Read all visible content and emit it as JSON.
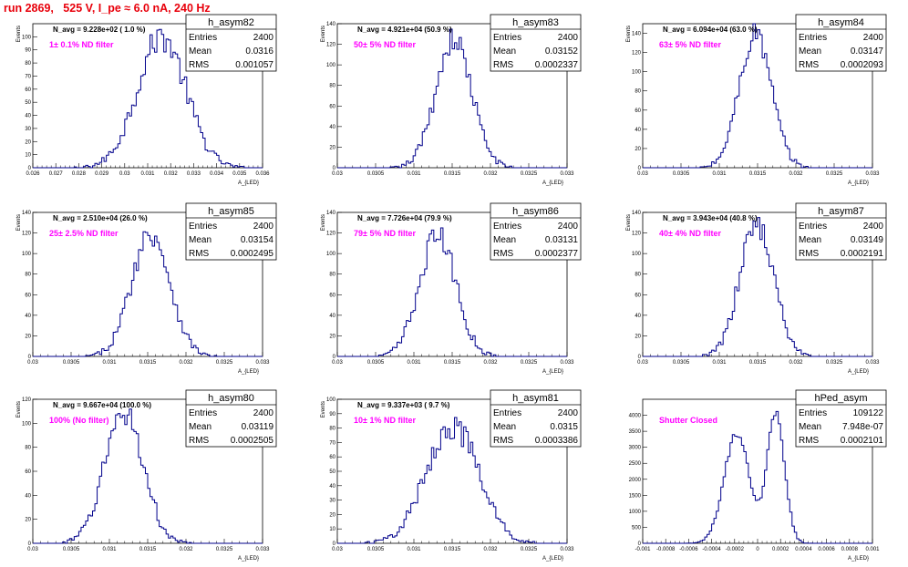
{
  "title": "run 2869,   525 V, I_pe ≈ 6.0 nA, 240 Hz",
  "colors": {
    "title": "#e8000b",
    "hist_line": "#00008b",
    "filter_label": "#ff00ff",
    "axes": "#000000"
  },
  "chart_data": [
    {
      "type": "histogram",
      "hist_name": "h_asym82",
      "navg": "N_avg = 9.228e+02 ( 1.0 %)",
      "filter": "1± 0.1% ND filter",
      "stats": {
        "entries": "2400",
        "mean": "0.0316",
        "rms": "0.001057"
      },
      "xlabel": "A_{LED}",
      "ylabel": "Events",
      "xlim": [
        0.026,
        0.036
      ],
      "ylim": [
        0,
        110
      ],
      "xticks": [
        0.026,
        0.027,
        0.028,
        0.029,
        0.03,
        0.031,
        0.032,
        0.033,
        0.034,
        0.035,
        0.036
      ],
      "xtick_labels": [
        "0.026",
        "0.027",
        "0.028",
        "0.029",
        "0.03",
        "0.031",
        "0.032",
        "0.033",
        "0.034",
        "0.035",
        "0.036"
      ],
      "yticks": [
        0,
        10,
        20,
        30,
        40,
        50,
        60,
        70,
        80,
        90,
        100
      ],
      "ytick_labels": [
        "0",
        "10",
        "20",
        "30",
        "40",
        "50",
        "60",
        "70",
        "80",
        "90",
        "100"
      ],
      "mean": 0.0316,
      "sigma": 0.001057,
      "peak": 100
    },
    {
      "type": "histogram",
      "hist_name": "h_asym83",
      "navg": "N_avg = 4.921e+04 (50.9 %)",
      "filter": "50± 5% ND filter",
      "stats": {
        "entries": "2400",
        "mean": "0.03152",
        "rms": "0.0002337"
      },
      "xlabel": "A_{LED}",
      "ylabel": "Events",
      "xlim": [
        0.03,
        0.033
      ],
      "ylim": [
        0,
        140
      ],
      "xticks": [
        0.03,
        0.0305,
        0.031,
        0.0315,
        0.032,
        0.0325,
        0.033
      ],
      "xtick_labels": [
        "0.03",
        "0.0305",
        "0.031",
        "0.0315",
        "0.032",
        "0.0325",
        "0.033"
      ],
      "yticks": [
        0,
        20,
        40,
        60,
        80,
        100,
        120,
        140
      ],
      "ytick_labels": [
        "0",
        "20",
        "40",
        "60",
        "80",
        "100",
        "120",
        "140"
      ],
      "mean": 0.03152,
      "sigma": 0.0002337,
      "peak": 125
    },
    {
      "type": "histogram",
      "hist_name": "h_asym84",
      "navg": "N_avg = 6.094e+04 (63.0 %)",
      "filter": "63± 5% ND filter",
      "stats": {
        "entries": "2400",
        "mean": "0.03147",
        "rms": "0.0002093"
      },
      "xlabel": "A_{LED}",
      "ylabel": "Events",
      "xlim": [
        0.03,
        0.033
      ],
      "ylim": [
        0,
        150
      ],
      "xticks": [
        0.03,
        0.0305,
        0.031,
        0.0315,
        0.032,
        0.0325,
        0.033
      ],
      "xtick_labels": [
        "0.03",
        "0.0305",
        "0.031",
        "0.0315",
        "0.032",
        "0.0325",
        "0.033"
      ],
      "yticks": [
        0,
        20,
        40,
        60,
        80,
        100,
        120,
        140
      ],
      "ytick_labels": [
        "0",
        "20",
        "40",
        "60",
        "80",
        "100",
        "120",
        "140"
      ],
      "mean": 0.03147,
      "sigma": 0.0002093,
      "peak": 140
    },
    {
      "type": "histogram",
      "hist_name": "h_asym85",
      "navg": "N_avg = 2.510e+04 (26.0 %)",
      "filter": "25± 2.5% ND filter",
      "stats": {
        "entries": "2400",
        "mean": "0.03154",
        "rms": "0.0002495"
      },
      "xlabel": "A_{LED}",
      "ylabel": "Events",
      "xlim": [
        0.03,
        0.033
      ],
      "ylim": [
        0,
        140
      ],
      "xticks": [
        0.03,
        0.0305,
        0.031,
        0.0315,
        0.032,
        0.0325,
        0.033
      ],
      "xtick_labels": [
        "0.03",
        "0.0305",
        "0.031",
        "0.0315",
        "0.032",
        "0.0325",
        "0.033"
      ],
      "yticks": [
        0,
        20,
        40,
        60,
        80,
        100,
        120,
        140
      ],
      "ytick_labels": [
        "0",
        "20",
        "40",
        "60",
        "80",
        "100",
        "120",
        "140"
      ],
      "mean": 0.03154,
      "sigma": 0.0002495,
      "peak": 120
    },
    {
      "type": "histogram",
      "hist_name": "h_asym86",
      "navg": "N_avg = 7.726e+04 (79.9 %)",
      "filter": "79± 5% ND filter",
      "stats": {
        "entries": "2400",
        "mean": "0.03131",
        "rms": "0.0002377"
      },
      "xlabel": "A_{LED}",
      "ylabel": "Events",
      "xlim": [
        0.03,
        0.033
      ],
      "ylim": [
        0,
        140
      ],
      "xticks": [
        0.03,
        0.0305,
        0.031,
        0.0315,
        0.032,
        0.0325,
        0.033
      ],
      "xtick_labels": [
        "0.03",
        "0.0305",
        "0.031",
        "0.0315",
        "0.032",
        "0.0325",
        "0.033"
      ],
      "yticks": [
        0,
        20,
        40,
        60,
        80,
        100,
        120,
        140
      ],
      "ytick_labels": [
        "0",
        "20",
        "40",
        "60",
        "80",
        "100",
        "120",
        "140"
      ],
      "mean": 0.03131,
      "sigma": 0.0002377,
      "peak": 118
    },
    {
      "type": "histogram",
      "hist_name": "h_asym87",
      "navg": "N_avg = 3.943e+04 (40.8 %)",
      "filter": "40± 4% ND filter",
      "stats": {
        "entries": "2400",
        "mean": "0.03149",
        "rms": "0.0002191"
      },
      "xlabel": "A_{LED}",
      "ylabel": "Events",
      "xlim": [
        0.03,
        0.033
      ],
      "ylim": [
        0,
        140
      ],
      "xticks": [
        0.03,
        0.0305,
        0.031,
        0.0315,
        0.032,
        0.0325,
        0.033
      ],
      "xtick_labels": [
        "0.03",
        "0.0305",
        "0.031",
        "0.0315",
        "0.032",
        "0.0325",
        "0.033"
      ],
      "yticks": [
        0,
        20,
        40,
        60,
        80,
        100,
        120,
        140
      ],
      "ytick_labels": [
        "0",
        "20",
        "40",
        "60",
        "80",
        "100",
        "120",
        "140"
      ],
      "mean": 0.03149,
      "sigma": 0.0002191,
      "peak": 130
    },
    {
      "type": "histogram",
      "hist_name": "h_asym80",
      "navg": "N_avg = 9.667e+04 (100.0 %)",
      "filter": "100% (No filter)",
      "stats": {
        "entries": "2400",
        "mean": "0.03119",
        "rms": "0.0002505"
      },
      "xlabel": "A_{LED}",
      "ylabel": "Events",
      "xlim": [
        0.03,
        0.033
      ],
      "ylim": [
        0,
        120
      ],
      "xticks": [
        0.03,
        0.0305,
        0.031,
        0.0315,
        0.032,
        0.0325,
        0.033
      ],
      "xtick_labels": [
        "0.03",
        "0.0305",
        "0.031",
        "0.0315",
        "0.032",
        "0.0325",
        "0.033"
      ],
      "yticks": [
        0,
        20,
        40,
        60,
        80,
        100,
        120
      ],
      "ytick_labels": [
        "0",
        "20",
        "40",
        "60",
        "80",
        "100",
        "120"
      ],
      "mean": 0.03119,
      "sigma": 0.0002505,
      "peak": 110
    },
    {
      "type": "histogram",
      "hist_name": "h_asym81",
      "navg": "N_avg = 9.337e+03 ( 9.7 %)",
      "filter": "10± 1% ND filter",
      "stats": {
        "entries": "2400",
        "mean": "0.0315",
        "rms": "0.0003386"
      },
      "xlabel": "A_{LED}",
      "ylabel": "Events",
      "xlim": [
        0.03,
        0.033
      ],
      "ylim": [
        0,
        100
      ],
      "xticks": [
        0.03,
        0.0305,
        0.031,
        0.0315,
        0.032,
        0.0325,
        0.033
      ],
      "xtick_labels": [
        "0.03",
        "0.0305",
        "0.031",
        "0.0315",
        "0.032",
        "0.0325",
        "0.033"
      ],
      "yticks": [
        0,
        10,
        20,
        30,
        40,
        50,
        60,
        70,
        80,
        90,
        100
      ],
      "ytick_labels": [
        "0",
        "10",
        "20",
        "30",
        "40",
        "50",
        "60",
        "70",
        "80",
        "90",
        "100"
      ],
      "mean": 0.0315,
      "sigma": 0.0003386,
      "peak": 82
    },
    {
      "type": "histogram",
      "hist_name": "hPed_asym",
      "navg": "",
      "filter": "Shutter Closed",
      "stats": {
        "entries": "109122",
        "mean": "7.948e-07",
        "rms": "0.0002101"
      },
      "xlabel": "A_{LED}",
      "ylabel": "",
      "xlim": [
        -0.001,
        0.001
      ],
      "ylim": [
        0,
        4500
      ],
      "xticks": [
        -0.001,
        -0.0008,
        -0.0006,
        -0.0004,
        -0.0002,
        0,
        0.0002,
        0.0004,
        0.0006,
        0.0008,
        0.001
      ],
      "xtick_labels": [
        "-0.001",
        "-0.0008",
        "-0.0006",
        "-0.0004",
        "-0.0002",
        "0",
        "0.0002",
        "0.0004",
        "0.0006",
        "0.0008",
        "0.001"
      ],
      "yticks": [
        0,
        500,
        1000,
        1500,
        2000,
        2500,
        3000,
        3500,
        4000
      ],
      "ytick_labels": [
        "0",
        "500",
        "1000",
        "1500",
        "2000",
        "2500",
        "3000",
        "3500",
        "4000"
      ],
      "bimodal": [
        {
          "mu": -0.00018,
          "sigma": 0.00011,
          "peak": 3450
        },
        {
          "mu": 0.00016,
          "sigma": 7.5e-05,
          "peak": 4100
        }
      ]
    }
  ]
}
